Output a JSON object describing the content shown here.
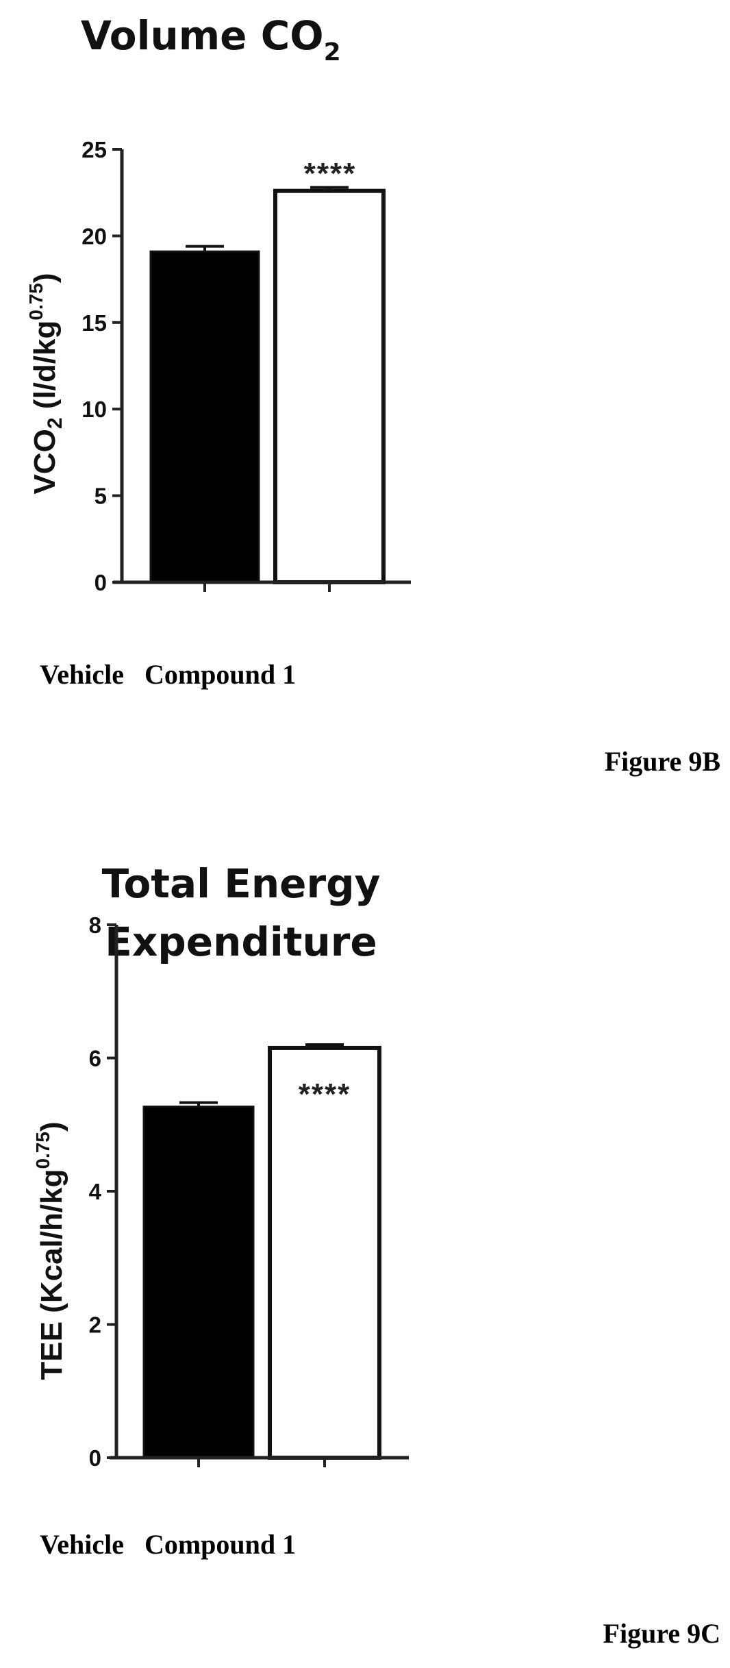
{
  "chart_data": [
    {
      "type": "bar",
      "title": "Volume CO",
      "title_subscript": "2",
      "ylabel": "VCO2 (l/d/kg0.75)",
      "ylabel_parts": {
        "base": "VCO",
        "sub": "2",
        "unit": " (l/d/kg",
        "sup": "0.75",
        "close": ")"
      },
      "categories": [
        "Vehicle",
        "Compound 1"
      ],
      "category_label_line": "Vehicle   Compound 1",
      "values": [
        19.1,
        22.6
      ],
      "errors": [
        0.3,
        0.2
      ],
      "bar_colors": [
        "#000000",
        "#ffffff"
      ],
      "ylim": [
        0,
        25
      ],
      "yticks": [
        0,
        5,
        10,
        15,
        20,
        25
      ],
      "ytick_labels": [
        "0",
        "5",
        "10",
        "15",
        "20",
        "25"
      ],
      "annotations": [
        {
          "category": "Compound 1",
          "text": "****"
        }
      ],
      "figure_label": "Figure 9B",
      "grid": false
    },
    {
      "type": "bar",
      "title": "Total Energy Expenditure",
      "title_lines": [
        "Total Energy",
        "Expenditure"
      ],
      "ylabel": "TEE (Kcal/h/kg0.75)",
      "ylabel_parts": {
        "base": "TEE (Kcal/h/kg",
        "sub": "",
        "unit": "",
        "sup": "0.75",
        "close": ")"
      },
      "categories": [
        "Vehicle",
        "Compound 1"
      ],
      "category_label_line": "Vehicle   Compound 1",
      "values": [
        5.27,
        6.15
      ],
      "errors": [
        0.06,
        0.05
      ],
      "bar_colors": [
        "#000000",
        "#ffffff"
      ],
      "ylim": [
        0,
        8
      ],
      "yticks": [
        0,
        2,
        4,
        6,
        8
      ],
      "ytick_labels": [
        "0",
        "2",
        "4",
        "6",
        "8"
      ],
      "annotations": [
        {
          "category": "Compound 1",
          "text": "****"
        }
      ],
      "figure_label": "Figure 9C",
      "grid": false
    }
  ]
}
